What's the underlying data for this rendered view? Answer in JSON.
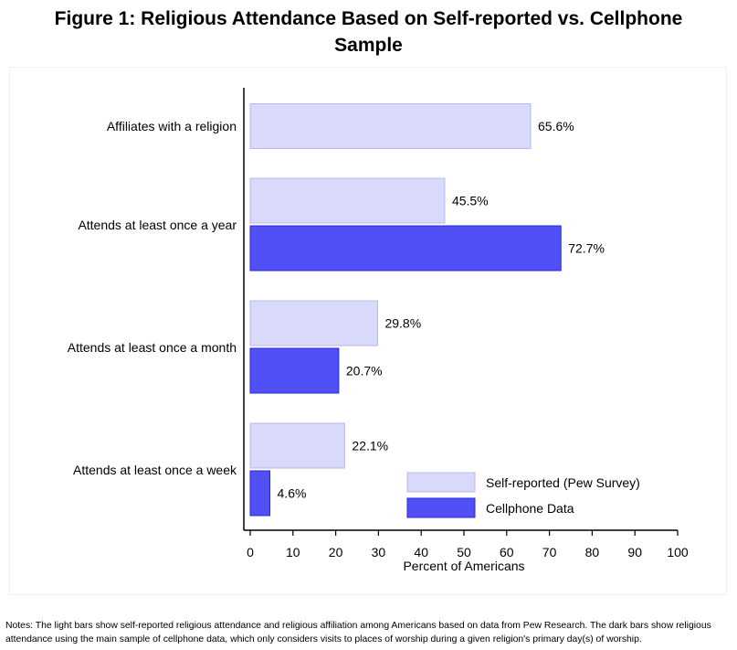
{
  "title_line1": "Figure 1: Religious Attendance Based on Self-reported vs. Cellphone",
  "title_line2": "Sample",
  "notes_line1": "Notes: The light bars show self-reported religious attendance and religious affiliation among Americans based on data from Pew Research. The dark bars show religious",
  "notes_line2": "attendance using the main sample of cellphone data, which only considers visits to places of worship during a given religion's primary day(s) of worship.",
  "colors": {
    "self_reported": "#d9d9fc",
    "self_reported_edge": "#b8b8f0",
    "cellphone": "#5050f5",
    "cellphone_edge": "#2a2ad8",
    "background": "#ffffff"
  },
  "chart_data": {
    "type": "bar",
    "orientation": "horizontal",
    "title": "",
    "xlabel": "Percent of Americans",
    "ylabel": "",
    "xlim": [
      0,
      100
    ],
    "xticks": [
      0,
      10,
      20,
      30,
      40,
      50,
      60,
      70,
      80,
      90,
      100
    ],
    "categories": [
      "Affiliates with a religion",
      "Attends at least once a year",
      "Attends at least once a month",
      "Attends at least once a week"
    ],
    "series": [
      {
        "name": "Self-reported (Pew Survey)",
        "values": [
          65.6,
          45.5,
          29.8,
          22.1
        ],
        "labels": [
          "65.6%",
          "45.5%",
          "29.8%",
          "22.1%"
        ]
      },
      {
        "name": "Cellphone Data",
        "values": [
          null,
          72.7,
          20.7,
          4.6
        ],
        "labels": [
          "",
          "72.7%",
          "20.7%",
          "4.6%"
        ]
      }
    ],
    "legend_position": "bottom-right",
    "grid": false
  }
}
